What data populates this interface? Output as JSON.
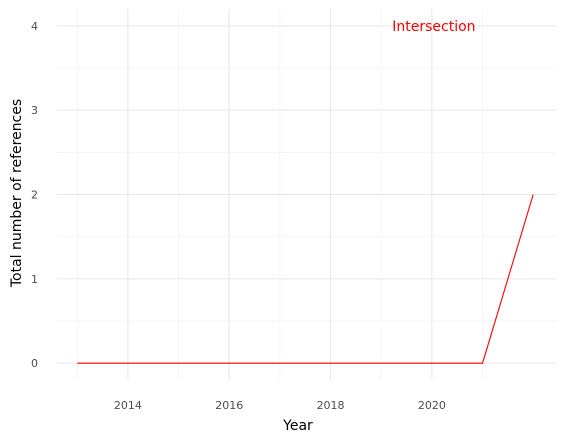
{
  "chart_data": {
    "type": "line",
    "title": "",
    "xlabel": "Year",
    "ylabel": "Total number of references",
    "xlim": [
      2012.6,
      2022.45
    ],
    "ylim": [
      -0.2,
      4.2
    ],
    "x_ticks": [
      2014,
      2016,
      2018,
      2020
    ],
    "x_tick_labels": [
      "2014",
      "2016",
      "2018",
      "2020"
    ],
    "y_ticks": [
      0,
      1,
      2,
      3,
      4
    ],
    "y_tick_labels": [
      "0",
      "1",
      "2",
      "3",
      "4"
    ],
    "grid": true,
    "series": [
      {
        "name": "Intersection",
        "color": "#ff0000",
        "x": [
          2013,
          2014,
          2015,
          2016,
          2017,
          2018,
          2019,
          2020,
          2021,
          2022
        ],
        "y": [
          0,
          0,
          0,
          0,
          0,
          0,
          0,
          0,
          0,
          2
        ]
      }
    ],
    "annotations": [
      {
        "text": "Intersection",
        "color": "#ff0000",
        "x": 2020.0,
        "y": 4.0
      }
    ]
  }
}
